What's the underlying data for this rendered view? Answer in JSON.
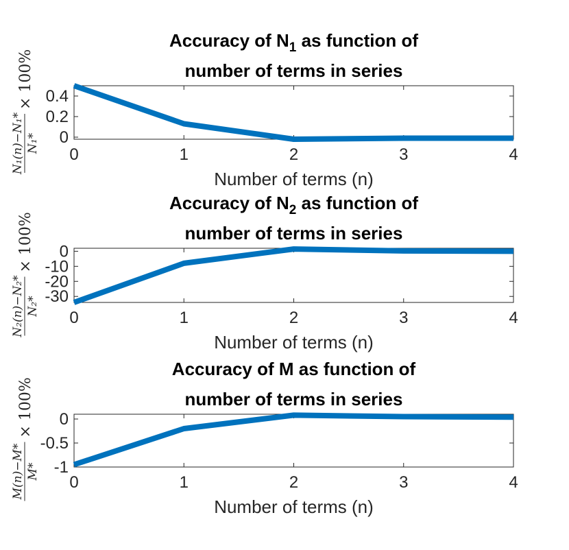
{
  "chart_data": [
    {
      "type": "line",
      "title": {
        "line1_prefix": "Accuracy of N",
        "line1_sub": "1",
        "line1_suffix": " as function of",
        "line2": "number of terms in series"
      },
      "xlabel": "Number of terms (n)",
      "ylabel": {
        "numerator": "N₁(n)−N₁*",
        "denominator": "N₁*",
        "suffix": "× 100%"
      },
      "x": [
        0,
        1,
        2,
        3,
        4
      ],
      "x_tick_labels": [
        "0",
        "1",
        "2",
        "3",
        "4"
      ],
      "y_ticks": [
        0,
        0.2,
        0.4
      ],
      "y_tick_labels": [
        "0",
        "0.2",
        "0.4"
      ],
      "xlim": [
        0,
        4
      ],
      "ylim": [
        -0.02,
        0.5
      ],
      "series": [
        {
          "values": [
            0.5,
            0.13,
            -0.02,
            -0.01,
            -0.01
          ],
          "color": "#0072BD"
        }
      ],
      "grid": false
    },
    {
      "type": "line",
      "title": {
        "line1_prefix": "Accuracy of N",
        "line1_sub": "2",
        "line1_suffix": " as function of",
        "line2": "number of terms in series"
      },
      "xlabel": "Number of terms (n)",
      "ylabel": {
        "numerator": "N₂(n)−N₂*",
        "denominator": "N₂*",
        "suffix": "× 100%"
      },
      "x": [
        0,
        1,
        2,
        3,
        4
      ],
      "x_tick_labels": [
        "0",
        "1",
        "2",
        "3",
        "4"
      ],
      "y_ticks": [
        -30,
        -20,
        -10,
        0
      ],
      "y_tick_labels": [
        "-30",
        "-20",
        "-10",
        "0"
      ],
      "xlim": [
        0,
        4
      ],
      "ylim": [
        -34,
        2
      ],
      "series": [
        {
          "values": [
            -34,
            -8,
            1.5,
            0.2,
            0.0
          ],
          "color": "#0072BD"
        }
      ],
      "grid": false
    },
    {
      "type": "line",
      "title": {
        "line1_prefix": "Accuracy of M",
        "line1_sub": "",
        "line1_suffix": " as function of",
        "line2": "number of terms in series"
      },
      "xlabel": "Number of terms (n)",
      "ylabel": {
        "numerator": "M(n)−M*",
        "denominator": "M*",
        "suffix": "× 100%"
      },
      "x": [
        0,
        1,
        2,
        3,
        4
      ],
      "x_tick_labels": [
        "0",
        "1",
        "2",
        "3",
        "4"
      ],
      "y_ticks": [
        -1,
        -0.5,
        0
      ],
      "y_tick_labels": [
        "-1",
        "-0.5",
        "0"
      ],
      "xlim": [
        0,
        4
      ],
      "ylim": [
        -1,
        0.1
      ],
      "series": [
        {
          "values": [
            -0.95,
            -0.2,
            0.08,
            0.05,
            0.04
          ],
          "color": "#0072BD"
        }
      ],
      "grid": false
    }
  ]
}
